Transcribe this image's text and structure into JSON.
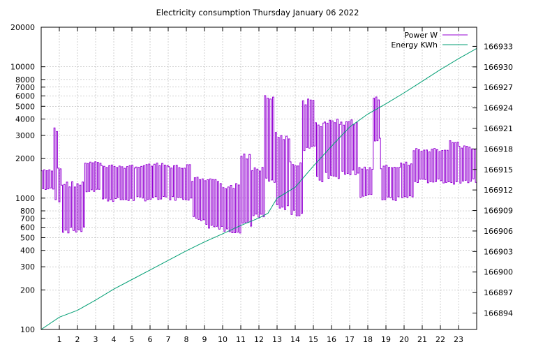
{
  "chart_data": {
    "type": "line",
    "title": "Electricity consumption Thursday January 06 2022",
    "xlabel": "",
    "ylabel": "",
    "y2label": "",
    "grid": true,
    "legend_position": "top-right",
    "x_range": [
      0,
      24
    ],
    "x_ticks": [
      "1",
      "2",
      "3",
      "4",
      "5",
      "6",
      "7",
      "8",
      "9",
      "10",
      "11",
      "12",
      "13",
      "14",
      "15",
      "16",
      "17",
      "18",
      "19",
      "20",
      "21",
      "22",
      "23"
    ],
    "y_scale": "log",
    "y_range": [
      100,
      20000
    ],
    "y_ticks": [
      {
        "value": 100,
        "label": "100"
      },
      {
        "value": 200,
        "label": "200"
      },
      {
        "value": 300,
        "label": "300"
      },
      {
        "value": 400,
        "label": "400"
      },
      {
        "value": 500,
        "label": "500"
      },
      {
        "value": 600,
        "label": "600"
      },
      {
        "value": 700,
        "label": "700"
      },
      {
        "value": 800,
        "label": "800"
      },
      {
        "value": 1000,
        "label": "1000"
      },
      {
        "value": 2000,
        "label": "2000"
      },
      {
        "value": 3000,
        "label": "3000"
      },
      {
        "value": 4000,
        "label": "4000"
      },
      {
        "value": 5000,
        "label": "5000"
      },
      {
        "value": 6000,
        "label": "6000"
      },
      {
        "value": 7000,
        "label": "7000"
      },
      {
        "value": 8000,
        "label": "8000"
      },
      {
        "value": 10000,
        "label": "10000"
      },
      {
        "value": 20000,
        "label": "20000"
      }
    ],
    "y2_range": [
      166891.6,
      166935.8
    ],
    "y2_ticks": [
      "166894",
      "166897",
      "166900",
      "166903",
      "166906",
      "166909",
      "166912",
      "166915",
      "166918",
      "166921",
      "166924",
      "166927",
      "166930",
      "166933"
    ],
    "series": [
      {
        "name": "Power W",
        "color": "#9400d3",
        "axis": "y",
        "segments": [
          {
            "x0": 0.0,
            "x1": 0.7,
            "hi": 1650,
            "lo": 1150
          },
          {
            "x0": 0.7,
            "x1": 0.9,
            "hi": 3600,
            "lo": 850
          },
          {
            "x0": 0.9,
            "x1": 1.1,
            "hi": 1700,
            "lo": 900
          },
          {
            "x0": 1.1,
            "x1": 2.4,
            "hi": 1350,
            "lo": 540
          },
          {
            "x0": 2.4,
            "x1": 3.3,
            "hi": 1900,
            "lo": 1100
          },
          {
            "x0": 3.3,
            "x1": 5.2,
            "hi": 1800,
            "lo": 940
          },
          {
            "x0": 5.2,
            "x1": 7.0,
            "hi": 1850,
            "lo": 950
          },
          {
            "x0": 7.0,
            "x1": 8.3,
            "hi": 1800,
            "lo": 960
          },
          {
            "x0": 8.3,
            "x1": 9.0,
            "hi": 1450,
            "lo": 670
          },
          {
            "x0": 9.0,
            "x1": 10.0,
            "hi": 1400,
            "lo": 580
          },
          {
            "x0": 10.0,
            "x1": 11.0,
            "hi": 1300,
            "lo": 540
          },
          {
            "x0": 11.0,
            "x1": 11.6,
            "hi": 2300,
            "lo": 600
          },
          {
            "x0": 11.6,
            "x1": 12.3,
            "hi": 1800,
            "lo": 680
          },
          {
            "x0": 12.3,
            "x1": 12.9,
            "hi": 7000,
            "lo": 1200
          },
          {
            "x0": 12.9,
            "x1": 13.7,
            "hi": 3200,
            "lo": 750
          },
          {
            "x0": 13.7,
            "x1": 14.4,
            "hi": 1900,
            "lo": 720
          },
          {
            "x0": 14.4,
            "x1": 15.1,
            "hi": 5700,
            "lo": 2300
          },
          {
            "x0": 15.1,
            "x1": 15.6,
            "hi": 3900,
            "lo": 1300
          },
          {
            "x0": 15.6,
            "x1": 16.5,
            "hi": 4000,
            "lo": 1400
          },
          {
            "x0": 16.5,
            "x1": 17.5,
            "hi": 4000,
            "lo": 1500
          },
          {
            "x0": 17.5,
            "x1": 18.3,
            "hi": 1750,
            "lo": 1000
          },
          {
            "x0": 18.3,
            "x1": 18.7,
            "hi": 6000,
            "lo": 2700
          },
          {
            "x0": 18.7,
            "x1": 19.8,
            "hi": 1800,
            "lo": 950
          },
          {
            "x0": 19.8,
            "x1": 20.5,
            "hi": 1900,
            "lo": 980
          },
          {
            "x0": 20.5,
            "x1": 22.5,
            "hi": 2400,
            "lo": 1300
          },
          {
            "x0": 22.5,
            "x1": 23.0,
            "hi": 2800,
            "lo": 1250
          },
          {
            "x0": 23.0,
            "x1": 24.0,
            "hi": 2500,
            "lo": 1300
          }
        ]
      },
      {
        "name": "Energy KWh",
        "color": "#009e73",
        "axis": "y2",
        "x": [
          0,
          1,
          2,
          3,
          4,
          5,
          6,
          7,
          8,
          9,
          10,
          11,
          12,
          12.5,
          13,
          14,
          15,
          16,
          17,
          18,
          19,
          20,
          21,
          22,
          23,
          24
        ],
        "values": [
          166891.6,
          166893.4,
          166894.4,
          166895.9,
          166897.5,
          166898.9,
          166900.3,
          166901.7,
          166903.1,
          166904.4,
          166905.6,
          166906.8,
          166907.9,
          166908.6,
          166910.8,
          166912.4,
          166915.5,
          166918.4,
          166921.2,
          166923.1,
          166924.6,
          166926.2,
          166927.9,
          166929.6,
          166931.2,
          166932.7
        ]
      }
    ]
  }
}
